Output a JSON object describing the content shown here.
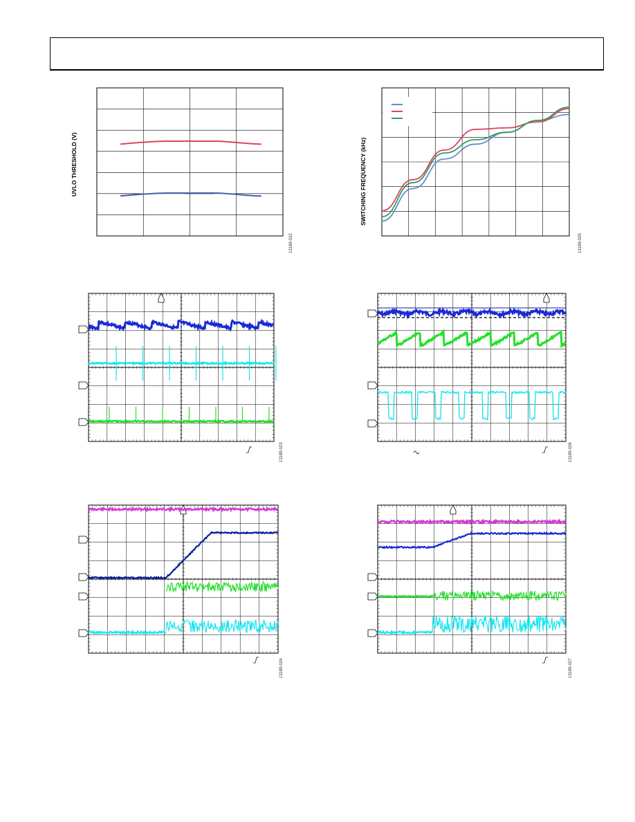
{
  "page": {
    "header_text": ""
  },
  "figures": [
    {
      "id": "uvlo",
      "ylabel": "UVLO THRESHOLD (V)",
      "fig_id": "13189-022",
      "chart_data": {
        "type": "line",
        "series": [
          {
            "values": [
              0.62,
              0.64,
              0.64,
              0.62
            ],
            "color": "#d9455f"
          },
          {
            "values": [
              0.27,
              0.29,
              0.29,
              0.27
            ],
            "color": "#3f63a8"
          }
        ],
        "grid": true
      }
    },
    {
      "id": "switching-frequency",
      "ylabel": "SWITCHING FREQUENCY (kHz)",
      "fig_id": "13189-025",
      "chart_data": {
        "type": "line",
        "series": [
          {
            "color": "#6a8cc8",
            "values": [
              0.1,
              0.32,
              0.52,
              0.62,
              0.7,
              0.78,
              0.82
            ]
          },
          {
            "color": "#d9455f",
            "values": [
              0.17,
              0.38,
              0.58,
              0.72,
              0.73,
              0.77,
              0.86
            ]
          },
          {
            "color": "#2e9e5e",
            "values": [
              0.13,
              0.36,
              0.56,
              0.65,
              0.7,
              0.78,
              0.87
            ]
          }
        ],
        "legend": "top-left",
        "grid": true
      }
    }
  ],
  "scopes": [
    {
      "id": "scope-1",
      "fig_id": "13189-023"
    },
    {
      "id": "scope-2",
      "fig_id": "13189-026"
    },
    {
      "id": "scope-3",
      "fig_id": "13189-024"
    },
    {
      "id": "scope-4",
      "fig_id": "13189-027"
    }
  ],
  "colors": {
    "blue": "#1a2ad6",
    "cyan": "#19e6f0",
    "green": "#22e02a",
    "magenta": "#d43ad6",
    "navy": "#0c1f9a"
  }
}
